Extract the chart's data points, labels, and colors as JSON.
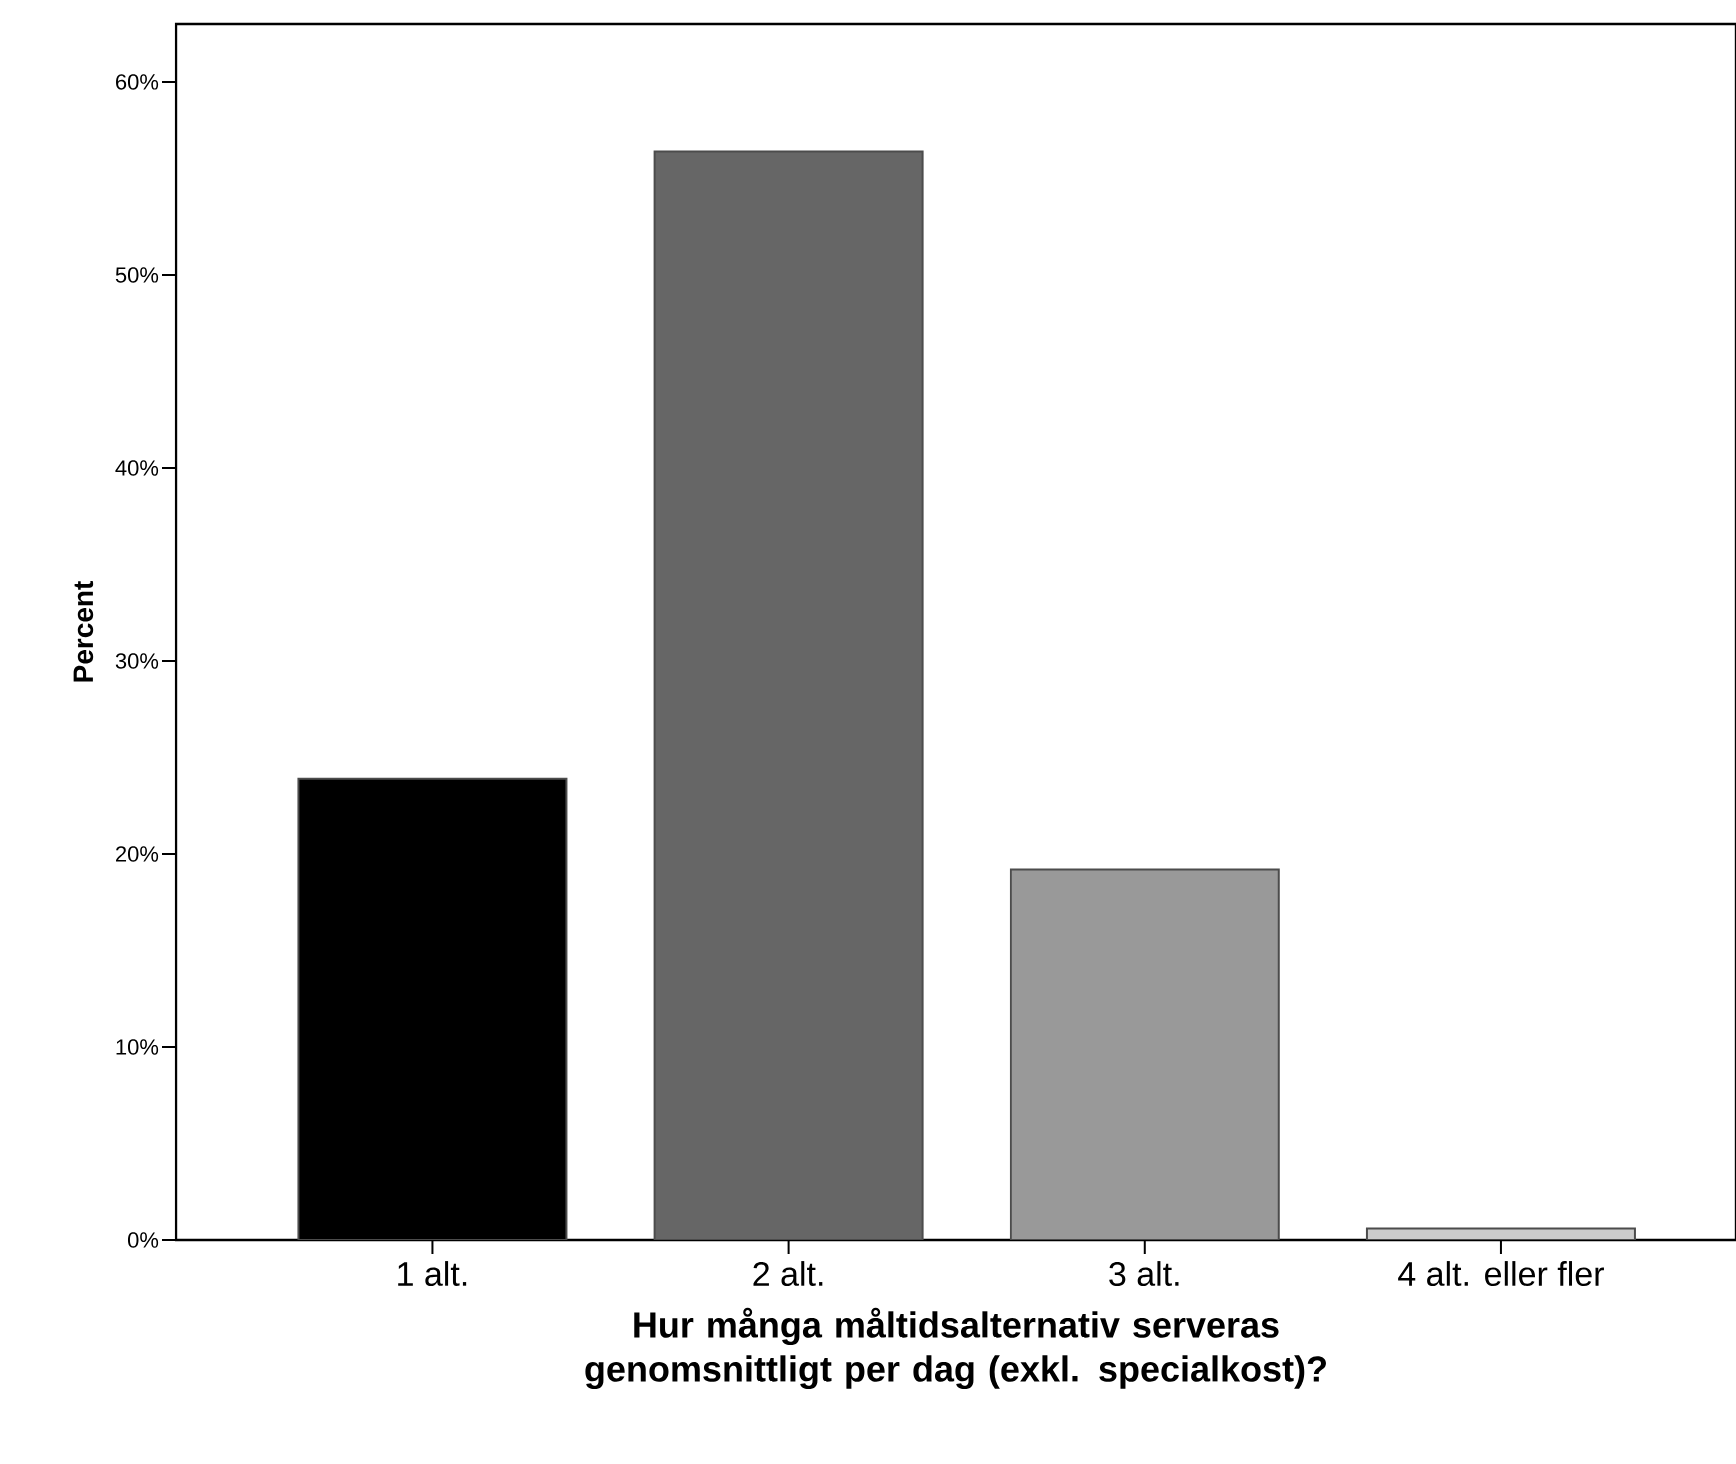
{
  "chart_data": {
    "type": "bar",
    "xlabel": "Hur många måltidsalternativ serveras genomsnittligt per dag (exkl. specialkost)?",
    "ylabel": "Percent",
    "categories": [
      "1 alt.",
      "2 alt.",
      "3 alt.",
      "4 alt. eller fler"
    ],
    "values": [
      23.9,
      56.4,
      19.2,
      0.6
    ],
    "colors": [
      "#000000",
      "#666666",
      "#999999",
      "#cccccc"
    ],
    "ylim": [
      0,
      63
    ],
    "yticks": [
      {
        "value": 0,
        "label": "0%"
      },
      {
        "value": 10,
        "label": "10%"
      },
      {
        "value": 20,
        "label": "20%"
      },
      {
        "value": 30,
        "label": "30%"
      },
      {
        "value": 40,
        "label": "40%"
      },
      {
        "value": 50,
        "label": "50%"
      },
      {
        "value": 60,
        "label": "60%"
      }
    ]
  }
}
